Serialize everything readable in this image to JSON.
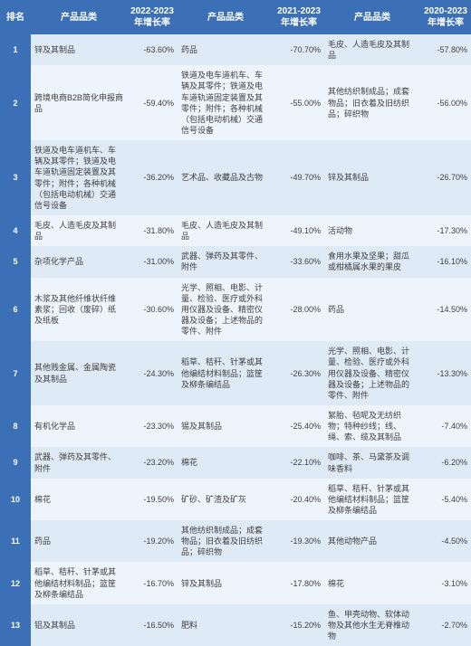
{
  "colors": {
    "header_bg": "#3b6fb6",
    "rank_bg": "#3b6fb6",
    "row_odd_bg": "#deeaf6",
    "row_even_bg": "#eef4fb",
    "header_text": "#ffffff",
    "cell_text": "#404040"
  },
  "headers": {
    "rank": "排名",
    "cat1": "产品品类",
    "rate1": "2022-2023年增长率",
    "cat2": "产品品类",
    "rate2": "2021-2023年增长率",
    "cat3": "产品品类",
    "rate3": "2020-2023年增长率"
  },
  "rows": [
    {
      "rank": "1",
      "cat1": "锌及其制品",
      "rate1": "-63.60%",
      "cat2": "药品",
      "rate2": "-70.70%",
      "cat3": "毛皮、人造毛皮及其制品",
      "rate3": "-57.80%"
    },
    {
      "rank": "2",
      "cat1": "跨境电商B2B简化申报商品",
      "rate1": "-59.40%",
      "cat2": "铁道及电车道机车、车辆及其零件；铁道及电车道轨道固定装置及其零件；附件；各种机械（包括电动机械）交通信号设备",
      "rate2": "-55.00%",
      "cat3": "其他纺织制成品；成套物品；旧衣着及旧纺织品；碎织物",
      "rate3": "-56.00%"
    },
    {
      "rank": "3",
      "cat1": "铁道及电车道机车、车辆及其零件；铁道及电车道轨道固定装置及其零件；附件；各种机械（包括电动机械）交通信号设备",
      "rate1": "-36.20%",
      "cat2": "艺术品、收藏品及古物",
      "rate2": "-49.70%",
      "cat3": "锌及其制品",
      "rate3": "-26.70%"
    },
    {
      "rank": "4",
      "cat1": "毛皮、人造毛皮及其制品",
      "rate1": "-31.80%",
      "cat2": "毛皮、人造毛皮及其制品",
      "rate2": "-49.10%",
      "cat3": "活动物",
      "rate3": "-17.30%"
    },
    {
      "rank": "5",
      "cat1": "杂项化学产品",
      "rate1": "-31.00%",
      "cat2": "武器、弹药及其零件、附件",
      "rate2": "-33.60%",
      "cat3": "食用水果及坚果；甜瓜或柑橘属水果的果皮",
      "rate3": "-16.10%"
    },
    {
      "rank": "6",
      "cat1": "木浆及其他纤维状纤维素浆；回收（废碎）纸及纸板",
      "rate1": "-30.60%",
      "cat2": "光学、照相、电影、计量、检验、医疗或外科用仪器及设备、精密仪器及设备；上述物品的零件、附件",
      "rate2": "-28.00%",
      "cat3": "药品",
      "rate3": "-14.50%"
    },
    {
      "rank": "7",
      "cat1": "其他贱金属、金属陶瓷及其制品",
      "rate1": "-24.30%",
      "cat2": "稻草、秸秆、针茅或其他编结材料制品；篮筐及柳条编结品",
      "rate2": "-26.30%",
      "cat3": "光学、照相、电影、计量、检验、医疗或外科用仪器及设备、精密仪器及设备；上述物品的零件、附件",
      "rate3": "-13.30%"
    },
    {
      "rank": "8",
      "cat1": "有机化学品",
      "rate1": "-23.30%",
      "cat2": "锡及其制品",
      "rate2": "-25.40%",
      "cat3": "絮胎、毡呢及无纺织物；特种纱线；线、绳、索、缆及其制品",
      "rate3": "-7.40%"
    },
    {
      "rank": "9",
      "cat1": "武器、弹药及其零件、附件",
      "rate1": "-23.20%",
      "cat2": "棉花",
      "rate2": "-22.10%",
      "cat3": "咖啡、茶、马黛茶及调味香料",
      "rate3": "-6.20%"
    },
    {
      "rank": "10",
      "cat1": "棉花",
      "rate1": "-19.50%",
      "cat2": "矿砂、矿渣及矿灰",
      "rate2": "-20.40%",
      "cat3": "稻草、秸秆、针茅或其他编结材料制品；篮筐及柳条编结品",
      "rate3": "-5.40%"
    },
    {
      "rank": "11",
      "cat1": "药品",
      "rate1": "-19.20%",
      "cat2": "其他纺织制成品；成套物品；旧衣着及旧纺织品；碎织物",
      "rate2": "-19.30%",
      "cat3": "其他动物产品",
      "rate3": "-4.50%"
    },
    {
      "rank": "12",
      "cat1": "稻草、秸秆、针茅或其他编结材料制品；篮筐及柳条编结品",
      "rate1": "-16.70%",
      "cat2": "锌及其制品",
      "rate2": "-17.80%",
      "cat3": "棉花",
      "rate3": "-3.10%"
    },
    {
      "rank": "13",
      "cat1": "铝及其制品",
      "rate1": "-16.50%",
      "cat2": "肥料",
      "rate2": "-15.20%",
      "cat3": "鱼、甲壳动物、软体动物及其他水生无脊椎动物",
      "rate3": "-2.70%"
    }
  ]
}
